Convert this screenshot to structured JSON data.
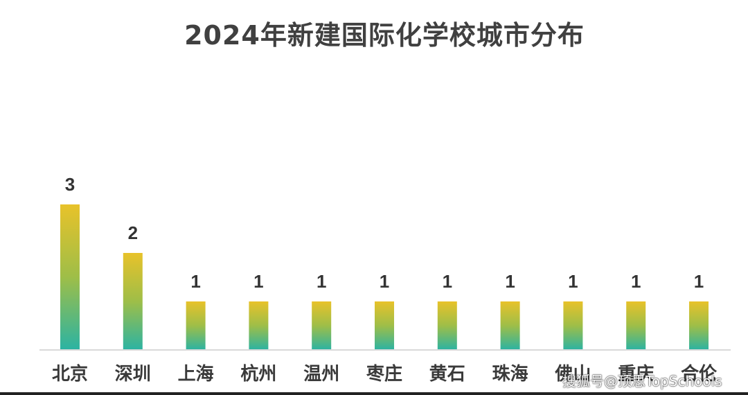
{
  "chart_data": {
    "type": "bar",
    "title": "2024年新建国际化学校城市分布",
    "categories": [
      "北京",
      "深圳",
      "上海",
      "杭州",
      "温州",
      "枣庄",
      "黄石",
      "珠海",
      "佛山",
      "重庆",
      "合伦"
    ],
    "values": [
      3,
      2,
      1,
      1,
      1,
      1,
      1,
      1,
      1,
      1,
      1
    ],
    "xlabel": "",
    "ylabel": "",
    "ylim": [
      0,
      3
    ],
    "grid": false,
    "legend": "none",
    "colors": {
      "bar_top": "#E8C22A",
      "bar_bottom": "#2BB3A3",
      "axis": "#d9d9d9"
    }
  },
  "watermark": "搜狐号@顶思TopSchools"
}
